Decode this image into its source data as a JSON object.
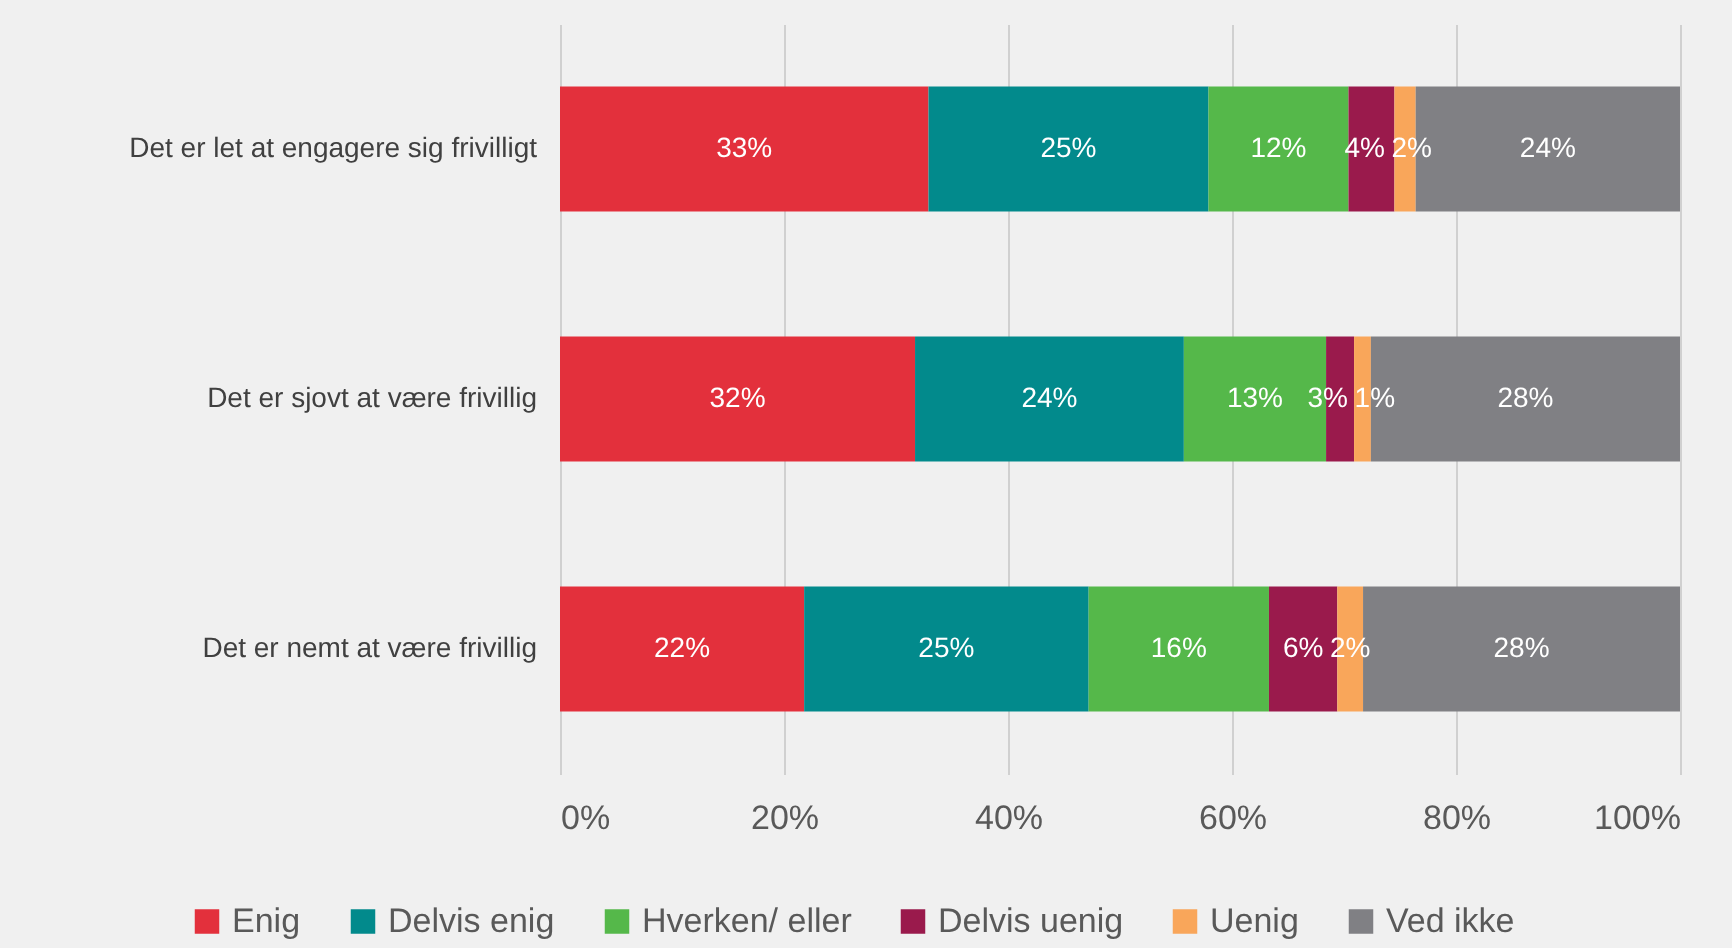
{
  "chart_data": {
    "type": "bar",
    "orientation": "horizontal",
    "stacked": true,
    "categories": [
      "Det er let at engagere sig frivilligt",
      "Det er sjovt at være frivillig",
      "Det er nemt at være frivillig"
    ],
    "series": [
      {
        "name": "Enig",
        "color": "#e3303c",
        "values": [
          32.9,
          31.7,
          21.8
        ],
        "value_labels": [
          "33%",
          "32%",
          "22%"
        ]
      },
      {
        "name": "Delvis enig",
        "color": "#028a8c",
        "values": [
          25.0,
          24.0,
          25.4
        ],
        "value_labels": [
          "25%",
          "24%",
          "25%"
        ]
      },
      {
        "name": "Hverken/ eller",
        "color": "#55b84a",
        "values": [
          12.5,
          12.7,
          16.1
        ],
        "value_labels": [
          "12%",
          "13%",
          "16%"
        ]
      },
      {
        "name": "Delvis uenig",
        "color": "#9a1a4c",
        "values": [
          4.1,
          2.5,
          6.1
        ],
        "value_labels": [
          "4%",
          "3%",
          "6%"
        ]
      },
      {
        "name": "Uenig",
        "color": "#f9a65a",
        "values": [
          1.9,
          1.5,
          2.3
        ],
        "value_labels": [
          "2%",
          "1%",
          "2%"
        ]
      },
      {
        "name": "Ved ikke",
        "color": "#808084",
        "values": [
          23.6,
          27.6,
          28.3
        ],
        "value_labels": [
          "24%",
          "28%",
          "28%"
        ]
      }
    ],
    "xlim": [
      0,
      100
    ],
    "xticks": [
      {
        "value": 0,
        "label": "0%"
      },
      {
        "value": 20,
        "label": "20%"
      },
      {
        "value": 40,
        "label": "40%"
      },
      {
        "value": 60,
        "label": "60%"
      },
      {
        "value": 80,
        "label": "80%"
      },
      {
        "value": 100,
        "label": "100%"
      }
    ],
    "grid": "x",
    "legend": "bottom"
  }
}
